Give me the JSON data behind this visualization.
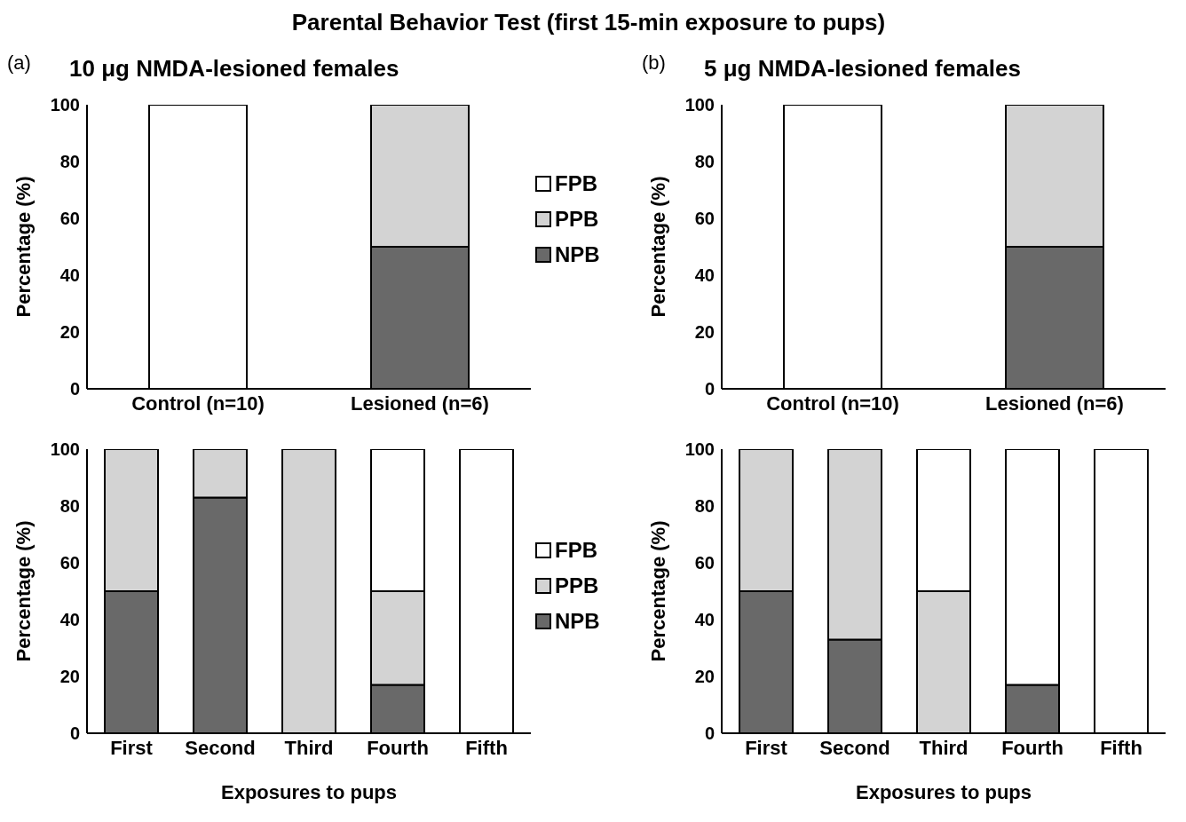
{
  "chart_data": [
    {
      "type": "bar",
      "stacked": true,
      "title": "10 μg NMDA-lesioned females",
      "annotations": [
        "Parental Behavior Test (first 15-min exposure to pups)",
        "(a)"
      ],
      "ylabel": "Percentage (%)",
      "categories": [
        "Control (n=10)",
        "Lesioned (n=6)"
      ],
      "ylim": [
        0,
        100
      ],
      "yticks": [
        0,
        20,
        40,
        60,
        80,
        100
      ],
      "legend": "right",
      "series": [
        {
          "name": "NPB",
          "color": "#696969",
          "values": [
            0,
            50
          ]
        },
        {
          "name": "PPB",
          "color": "#d3d3d3",
          "values": [
            0,
            50
          ]
        },
        {
          "name": "FPB",
          "color": "#ffffff",
          "values": [
            100,
            0
          ]
        }
      ]
    },
    {
      "type": "bar",
      "stacked": true,
      "title": "5 μg NMDA-lesioned females",
      "annotations": [
        "(b)"
      ],
      "ylabel": "Percentage (%)",
      "categories": [
        "Control (n=10)",
        "Lesioned (n=6)"
      ],
      "ylim": [
        0,
        100
      ],
      "yticks": [
        0,
        20,
        40,
        60,
        80,
        100
      ],
      "series": [
        {
          "color": "#696969",
          "values": [
            0,
            50
          ]
        },
        {
          "color": "#d3d3d3",
          "values": [
            0,
            50
          ]
        },
        {
          "color": "#ffffff",
          "values": [
            100,
            0
          ]
        }
      ]
    },
    {
      "type": "bar",
      "stacked": true,
      "ylabel": "Percentage (%)",
      "xlabel": "Exposures to pups",
      "categories": [
        "First",
        "Second",
        "Third",
        "Fourth",
        "Fifth"
      ],
      "ylim": [
        0,
        100
      ],
      "yticks": [
        0,
        20,
        40,
        60,
        80,
        100
      ],
      "legend": "right",
      "series": [
        {
          "name": "NPB",
          "color": "#696969",
          "values": [
            50,
            83,
            0,
            17,
            0
          ]
        },
        {
          "name": "PPB",
          "color": "#d3d3d3",
          "values": [
            50,
            17,
            100,
            33,
            0
          ]
        },
        {
          "name": "FPB",
          "color": "#ffffff",
          "values": [
            0,
            0,
            0,
            50,
            100
          ]
        }
      ]
    },
    {
      "type": "bar",
      "stacked": true,
      "ylabel": "Percentage (%)",
      "xlabel": "Exposures to pups",
      "categories": [
        "First",
        "Second",
        "Third",
        "Fourth",
        "Fifth"
      ],
      "ylim": [
        0,
        100
      ],
      "yticks": [
        0,
        20,
        40,
        60,
        80,
        100
      ],
      "series": [
        {
          "color": "#696969",
          "values": [
            50,
            33,
            0,
            17,
            0
          ]
        },
        {
          "color": "#d3d3d3",
          "values": [
            50,
            67,
            50,
            0,
            0
          ]
        },
        {
          "color": "#ffffff",
          "values": [
            0,
            0,
            50,
            83,
            100
          ]
        }
      ]
    }
  ]
}
